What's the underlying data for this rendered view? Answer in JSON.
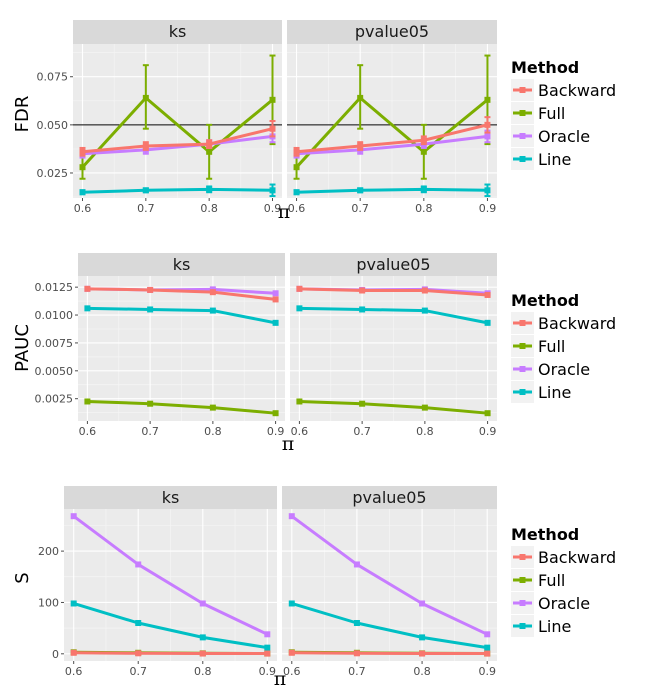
{
  "colors": {
    "Backward": "#F8766D",
    "Full": "#7CAE00",
    "Oracle": "#C77CFF",
    "Line": "#00BFC4",
    "panel_bg": "#EBEBEB",
    "strip_bg": "#D9D9D9",
    "grid_major": "#FFFFFF",
    "grid_minor": "#F5F5F5"
  },
  "legend": {
    "title": "Method",
    "entries": [
      "Backward",
      "Full",
      "Oracle",
      "Line"
    ]
  },
  "chart_data": [
    {
      "type": "line",
      "ylabel": "FDR",
      "xlabel": "π",
      "facets": [
        "ks",
        "pvalue05"
      ],
      "x": [
        0.6,
        0.7,
        0.8,
        0.9
      ],
      "x_tick_labels": [
        "0.6",
        "0.7",
        "0.8",
        "0.9"
      ],
      "ylim": [
        0.012,
        0.092
      ],
      "y_ticks": [
        0.025,
        0.05,
        0.075
      ],
      "y_tick_labels": [
        "0.025",
        "0.050",
        "0.075"
      ],
      "reference_line": 0.05,
      "error_bars": true,
      "panels": [
        {
          "facet": "ks",
          "series": [
            {
              "name": "Backward",
              "values": [
                0.036,
                0.039,
                0.04,
                0.048
              ],
              "lower": [
                0.034,
                0.037,
                0.038,
                0.044
              ],
              "upper": [
                0.038,
                0.041,
                0.042,
                0.052
              ]
            },
            {
              "name": "Full",
              "values": [
                0.028,
                0.064,
                0.036,
                0.063
              ],
              "lower": [
                0.022,
                0.048,
                0.022,
                0.04
              ],
              "upper": [
                0.034,
                0.081,
                0.05,
                0.086
              ]
            },
            {
              "name": "Oracle",
              "values": [
                0.035,
                0.037,
                0.04,
                0.044
              ],
              "lower": [
                0.033,
                0.035,
                0.038,
                0.041
              ],
              "upper": [
                0.037,
                0.039,
                0.042,
                0.047
              ]
            },
            {
              "name": "Line",
              "values": [
                0.015,
                0.016,
                0.0165,
                0.016
              ],
              "lower": [
                0.014,
                0.015,
                0.015,
                0.013
              ],
              "upper": [
                0.016,
                0.017,
                0.018,
                0.019
              ]
            }
          ]
        },
        {
          "facet": "pvalue05",
          "series": [
            {
              "name": "Backward",
              "values": [
                0.036,
                0.039,
                0.042,
                0.05
              ],
              "lower": [
                0.034,
                0.037,
                0.04,
                0.046
              ],
              "upper": [
                0.038,
                0.041,
                0.044,
                0.054
              ]
            },
            {
              "name": "Full",
              "values": [
                0.028,
                0.064,
                0.036,
                0.063
              ],
              "lower": [
                0.022,
                0.048,
                0.022,
                0.04
              ],
              "upper": [
                0.034,
                0.081,
                0.05,
                0.086
              ]
            },
            {
              "name": "Oracle",
              "values": [
                0.035,
                0.037,
                0.04,
                0.044
              ],
              "lower": [
                0.033,
                0.035,
                0.038,
                0.041
              ],
              "upper": [
                0.037,
                0.039,
                0.042,
                0.047
              ]
            },
            {
              "name": "Line",
              "values": [
                0.015,
                0.016,
                0.0165,
                0.016
              ],
              "lower": [
                0.014,
                0.015,
                0.015,
                0.013
              ],
              "upper": [
                0.016,
                0.017,
                0.018,
                0.019
              ]
            }
          ]
        }
      ]
    },
    {
      "type": "line",
      "ylabel": "PAUC",
      "xlabel": "π",
      "facets": [
        "ks",
        "pvalue05"
      ],
      "x": [
        0.6,
        0.7,
        0.8,
        0.9
      ],
      "x_tick_labels": [
        "0.6",
        "0.7",
        "0.8",
        "0.9"
      ],
      "ylim": [
        0.0005,
        0.0135
      ],
      "y_ticks": [
        0.0025,
        0.005,
        0.0075,
        0.01,
        0.0125
      ],
      "y_tick_labels": [
        "0.0025",
        "0.0050",
        "0.0075",
        "0.0100",
        "0.0125"
      ],
      "panels": [
        {
          "facet": "ks",
          "series": [
            {
              "name": "Backward",
              "values": [
                0.01235,
                0.01225,
                0.01205,
                0.0114
              ]
            },
            {
              "name": "Full",
              "values": [
                0.00225,
                0.00205,
                0.0017,
                0.0012
              ]
            },
            {
              "name": "Oracle",
              "values": [
                0.01235,
                0.01225,
                0.0123,
                0.01195
              ]
            },
            {
              "name": "Line",
              "values": [
                0.0106,
                0.0105,
                0.0104,
                0.0093
              ]
            }
          ]
        },
        {
          "facet": "pvalue05",
          "series": [
            {
              "name": "Backward",
              "values": [
                0.01235,
                0.0122,
                0.0122,
                0.0118
              ]
            },
            {
              "name": "Full",
              "values": [
                0.00225,
                0.00205,
                0.0017,
                0.0012
              ]
            },
            {
              "name": "Oracle",
              "values": [
                0.01235,
                0.01225,
                0.0123,
                0.01195
              ]
            },
            {
              "name": "Line",
              "values": [
                0.0106,
                0.0105,
                0.0104,
                0.0093
              ]
            }
          ]
        }
      ]
    },
    {
      "type": "line",
      "ylabel": "S",
      "xlabel": "π",
      "facets": [
        "ks",
        "pvalue05"
      ],
      "x": [
        0.6,
        0.7,
        0.8,
        0.9
      ],
      "x_tick_labels": [
        "0.6",
        "0.7",
        "0.8",
        "0.9"
      ],
      "ylim": [
        -14,
        282
      ],
      "y_ticks": [
        0,
        100,
        200
      ],
      "y_tick_labels": [
        "0",
        "100",
        "200"
      ],
      "panels": [
        {
          "facet": "ks",
          "series": [
            {
              "name": "Backward",
              "values": [
                2,
                1,
                0.5,
                0.5
              ]
            },
            {
              "name": "Full",
              "values": [
                3,
                2,
                1,
                0.5
              ]
            },
            {
              "name": "Oracle",
              "values": [
                268,
                174,
                98,
                38
              ]
            },
            {
              "name": "Line",
              "values": [
                98,
                60,
                32,
                12
              ]
            }
          ]
        },
        {
          "facet": "pvalue05",
          "series": [
            {
              "name": "Backward",
              "values": [
                2,
                1,
                0.5,
                0.5
              ]
            },
            {
              "name": "Full",
              "values": [
                3,
                2,
                1,
                0.5
              ]
            },
            {
              "name": "Oracle",
              "values": [
                268,
                174,
                98,
                38
              ]
            },
            {
              "name": "Line",
              "values": [
                98,
                60,
                32,
                12
              ]
            }
          ]
        }
      ]
    }
  ]
}
